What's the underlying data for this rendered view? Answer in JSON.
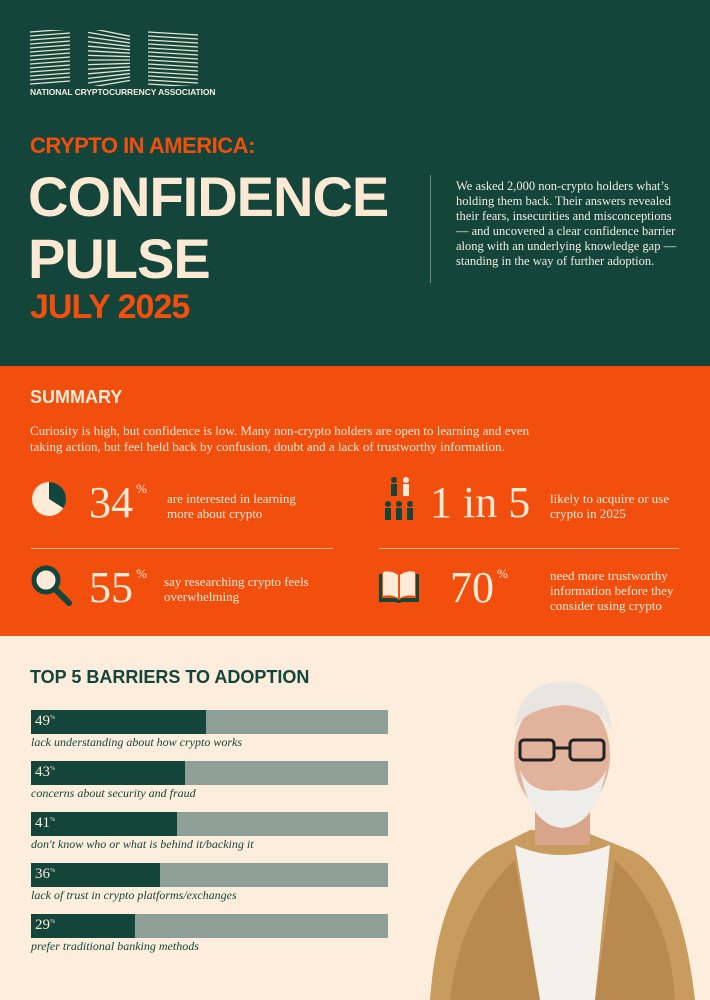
{
  "header": {
    "logo": {
      "letters": "NCA",
      "name": "NATIONAL CRYPTOCURRENCY ASSOCIATION"
    },
    "kicker": "CRYPTO IN AMERICA:",
    "title_line1": "CONFIDENCE",
    "title_line2": "PULSE",
    "date": "JULY 2025",
    "intro": "We asked 2,000 non-crypto holders what’s holding them back. Their answers revealed their fears, insecurities and misconceptions — and uncovered a clear confidence barrier along with an underlying knowledge gap — standing in the way of further adoption."
  },
  "summary": {
    "title": "SUMMARY",
    "description": "Curiosity is high, but confidence is low. Many non-crypto holders are open to learning and even taking action, but feel held back by confusion, doubt and a lack of trustworthy information.",
    "stats": [
      {
        "icon": "pie-chart-icon",
        "value": "34",
        "unit": "%",
        "text": "are interested in learning more about crypto",
        "fraction": 0.34
      },
      {
        "icon": "people-icon",
        "value": "1 in 5",
        "unit": "",
        "text": "likely to acquire or use crypto in 2025"
      },
      {
        "icon": "magnifier-icon",
        "value": "55",
        "unit": "%",
        "text": "say researching crypto feels overwhelming"
      },
      {
        "icon": "book-icon",
        "value": "70",
        "unit": "%",
        "text": "need more trustworthy information before they consider using crypto"
      }
    ]
  },
  "chart_data": {
    "type": "bar",
    "title": "TOP 5 BARRIERS TO ADOPTION",
    "categories": [
      "lack understanding about how crypto works",
      "concerns about security and fraud",
      "don't know who or what is behind it/backing it",
      "lack of trust in crypto platforms/exchanges",
      "prefer traditional banking methods"
    ],
    "values": [
      49,
      43,
      41,
      36,
      29
    ],
    "unit": "%",
    "ylim": [
      0,
      100
    ],
    "colors": {
      "fill": "#13453a",
      "track": "#8e9f97"
    }
  },
  "colors": {
    "green": "#13453a",
    "orange": "#f24e0d",
    "cream": "#fdeddc"
  }
}
